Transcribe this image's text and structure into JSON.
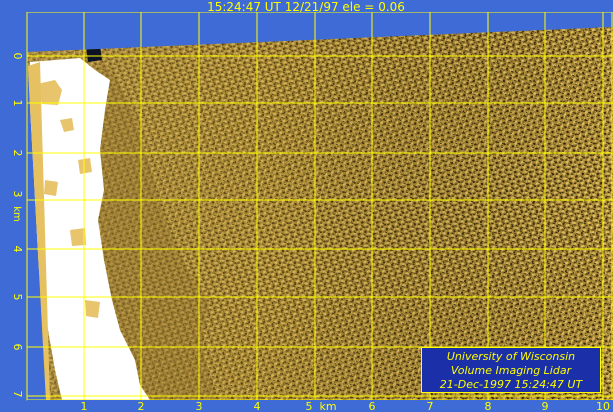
{
  "header": {
    "title": "15:24:47 UT   12/21/97 ele = 0.06"
  },
  "axes": {
    "y_ticks": [
      "0",
      "1",
      "2",
      "3",
      "4",
      "5",
      "6",
      "7"
    ],
    "y_unit": "km",
    "x_ticks": [
      "1",
      "2",
      "3",
      "4",
      "5",
      "6",
      "7",
      "8",
      "9",
      "10"
    ],
    "x_unit": "km"
  },
  "credit": {
    "line1": "University of Wisconsin",
    "line2": "Volume Imaging Lidar",
    "line3": "21-Dec-1997 15:24:47 UT"
  },
  "colors": {
    "background_blue": "#3f6bd6",
    "scan_base": "#a88832",
    "grid": "#ffff00",
    "text": "#ffff00",
    "credit_box": "#1a2fa8",
    "noise_light": "#e8c56c",
    "noise_dark": "#3d2e10"
  }
}
